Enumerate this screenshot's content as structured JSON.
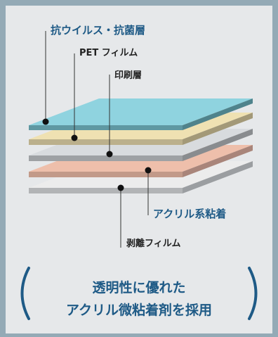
{
  "labels": {
    "antiviral_layer": "抗ウイルス・抗菌層",
    "pet_film": "PET フィルム",
    "print_layer": "印刷層",
    "acrylic_adhesive": "アクリル系粘着",
    "release_film": "剥離フィルム"
  },
  "summary": {
    "line1": "透明性に優れた",
    "line2": "アクリル微粘着剤を採用"
  },
  "colors": {
    "background_border": "#94aab6",
    "panel": "#e6e8ea",
    "antiviral_layer_top": "#8fd3df",
    "pet_film_top": "#efe1b2",
    "print_layer_top": "#d8dbde",
    "acrylic_adhesive_top": "#eebfab",
    "release_film_top": "#ececec",
    "accent_text": "#1e5a86"
  }
}
